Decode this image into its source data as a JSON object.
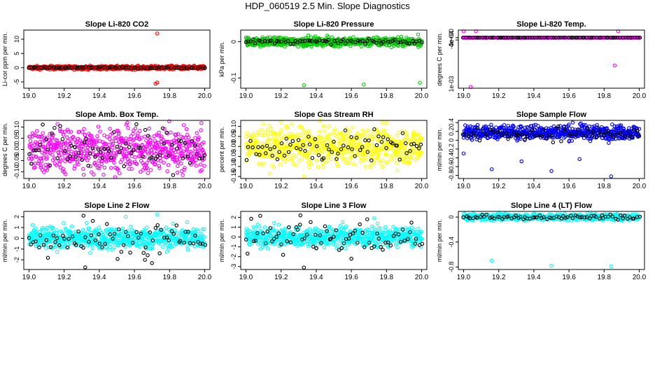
{
  "figure": {
    "title": "HDP_060519  2.5 Min. Slope Diagnostics"
  },
  "chart_data": [
    {
      "type": "scatter",
      "title": "Slope Li-820 CO2",
      "ylabel": "Li-cor ppm per min.",
      "color": "#ff0000",
      "xlim": [
        18.97,
        20.03
      ],
      "ylim": [
        -7.2,
        13.2
      ],
      "xticks": [
        19.0,
        19.2,
        19.4,
        19.6,
        19.8,
        20.0
      ],
      "yticks": [
        -5,
        0,
        5,
        10
      ],
      "series": [
        {
          "name": "all",
          "dense_center": 0,
          "dense_spread": 0.3,
          "outliers": [
            [
              19.73,
              12.0
            ],
            [
              19.73,
              -5.2
            ],
            [
              19.72,
              -5.6
            ],
            [
              19.81,
              0.8
            ]
          ]
        },
        {
          "name": "selected",
          "color": "#000000",
          "center": 0,
          "spread": 0.15
        }
      ]
    },
    {
      "type": "scatter",
      "title": "Slope Li-820 Pressure",
      "ylabel": "kPa per min.",
      "color": "#00cc00",
      "xlim": [
        18.97,
        20.03
      ],
      "ylim": [
        -0.128,
        0.032
      ],
      "xticks": [
        19.0,
        19.2,
        19.4,
        19.6,
        19.8,
        20.0
      ],
      "yticks": [
        -0.1,
        0.0
      ],
      "series": [
        {
          "name": "all",
          "dense_center": 0,
          "dense_spread": 0.006,
          "outliers": [
            [
              19.33,
              -0.12
            ],
            [
              19.67,
              -0.118
            ],
            [
              19.99,
              -0.113
            ],
            [
              19.98,
              0.02
            ]
          ]
        },
        {
          "name": "selected",
          "color": "#000000",
          "center": 0,
          "spread": 0.003
        }
      ]
    },
    {
      "type": "scatter",
      "title": "Slope Li-820 Temp.",
      "ylabel": "degrees C per min.",
      "color": "#ff00ff",
      "xlim": [
        18.97,
        20.03
      ],
      "ylim": [
        -0.0087,
        0.0013
      ],
      "xticks": [
        19.0,
        19.2,
        19.4,
        19.6,
        19.8,
        20.0
      ],
      "yticks": [
        -0.0004,
        0.0
      ],
      "ytick_labels": [
        "-4e-04",
        "0e+00"
      ],
      "ytick_extra": "1e-03",
      "series": [
        {
          "name": "all",
          "dense_center": 0,
          "dense_spread": 1e-05,
          "outliers": [
            [
              19.0,
              0.0011
            ],
            [
              19.07,
              0.0011
            ],
            [
              19.88,
              0.0011
            ],
            [
              19.04,
              -0.0085
            ],
            [
              19.86,
              -0.0048
            ]
          ]
        },
        {
          "name": "selected",
          "color": "#000000",
          "center": 0,
          "spread": 1e-05
        }
      ]
    },
    {
      "type": "scatter",
      "title": "Slope Amb. Box Temp.",
      "ylabel": "degrees C per min.",
      "color": "#ff00ff",
      "xlim": [
        18.97,
        20.03
      ],
      "ylim": [
        -0.13,
        0.13
      ],
      "xticks": [
        19.0,
        19.2,
        19.4,
        19.6,
        19.8,
        20.0
      ],
      "yticks": [
        -0.1,
        -0.05,
        0.0,
        0.05,
        0.1
      ],
      "ytick_labels": [
        "-0.10",
        "-0.05",
        "0.00",
        "0.05",
        "0.10"
      ],
      "series": [
        {
          "name": "all",
          "dense_center": 0,
          "dense_spread": 0.05,
          "outliers": []
        },
        {
          "name": "selected",
          "color": "#000000",
          "center": 0,
          "spread": 0.05
        }
      ]
    },
    {
      "type": "scatter",
      "title": "Slope Gas Stream RH",
      "ylabel": "percent per min.",
      "color": "#ffff00",
      "xlim": [
        18.97,
        20.03
      ],
      "ylim": [
        -0.16,
        0.13
      ],
      "xticks": [
        19.0,
        19.2,
        19.4,
        19.6,
        19.8,
        20.0
      ],
      "yticks": [
        -0.15,
        -0.1,
        -0.05,
        0.0,
        0.05,
        0.1
      ],
      "ytick_labels": [
        "-0.15",
        "-0.10",
        "-0.05",
        "0.00",
        "0.05",
        "0.10"
      ],
      "series": [
        {
          "name": "all",
          "dense_center": 0,
          "dense_spread": 0.045,
          "outliers": [
            [
              19.33,
              -0.15
            ],
            [
              19.2,
              0.12
            ]
          ]
        },
        {
          "name": "selected",
          "color": "#000000",
          "center": 0,
          "spread": 0.04
        }
      ]
    },
    {
      "type": "scatter",
      "title": "Slope Sample Flow",
      "ylabel": "ml/min per min.",
      "color": "#0000ff",
      "xlim": [
        18.97,
        20.03
      ],
      "ylim": [
        -0.87,
        0.45
      ],
      "xticks": [
        19.0,
        19.2,
        19.4,
        19.6,
        19.8,
        20.0
      ],
      "yticks": [
        -0.8,
        -0.6,
        -0.4,
        -0.2,
        0.0,
        0.2,
        0.4
      ],
      "series": [
        {
          "name": "all",
          "dense_center": 0.18,
          "dense_spread": 0.08,
          "outliers": [
            [
              19.16,
              -0.66
            ],
            [
              19.33,
              -0.48
            ],
            [
              19.5,
              -0.7
            ],
            [
              19.66,
              -0.43
            ],
            [
              19.84,
              -0.82
            ],
            [
              19.0,
              -0.3
            ]
          ]
        },
        {
          "name": "selected",
          "color": "#000000",
          "center": 0.15,
          "spread": 0.08
        }
      ]
    },
    {
      "type": "scatter",
      "title": "Slope Line 2 Flow",
      "ylabel": "ml/min per min.",
      "color": "#00ffff",
      "xlim": [
        18.97,
        20.03
      ],
      "ylim": [
        -2.9,
        2.5
      ],
      "xticks": [
        19.0,
        19.2,
        19.4,
        19.6,
        19.8,
        20.0
      ],
      "yticks": [
        -2,
        -1,
        0,
        1,
        2
      ],
      "series": [
        {
          "name": "all",
          "dense_center": 0,
          "dense_spread": 0.5,
          "outliers": [
            [
              19.55,
              2.0
            ],
            [
              19.73,
              2.2
            ],
            [
              19.9,
              1.5
            ]
          ]
        },
        {
          "name": "selected",
          "color": "#000000",
          "center": 0,
          "spread": 0.8,
          "outliers": [
            [
              19.32,
              -2.7
            ],
            [
              19.31,
              2.1
            ],
            [
              19.66,
              -2.0
            ],
            [
              19.7,
              -2.3
            ]
          ]
        }
      ]
    },
    {
      "type": "scatter",
      "title": "Slope Line 3 Flow",
      "ylabel": "ml/min per min.",
      "color": "#00ffff",
      "xlim": [
        18.97,
        20.03
      ],
      "ylim": [
        -3.3,
        2.6
      ],
      "xticks": [
        19.0,
        19.2,
        19.4,
        19.6,
        19.8,
        20.0
      ],
      "yticks": [
        -3,
        -2,
        -1,
        0,
        1,
        2
      ],
      "series": [
        {
          "name": "all",
          "dense_center": 0,
          "dense_spread": 0.5,
          "outliers": [
            [
              19.55,
              1.5
            ],
            [
              19.73,
              1.9
            ]
          ]
        },
        {
          "name": "selected",
          "color": "#000000",
          "center": 0,
          "spread": 0.8,
          "outliers": [
            [
              19.33,
              -3.1
            ],
            [
              19.31,
              2.2
            ],
            [
              19.6,
              -2.2
            ]
          ]
        }
      ]
    },
    {
      "type": "scatter",
      "title": "Slope Line 4 (LT) Flow",
      "ylabel": "ml/min per min.",
      "color": "#00ffff",
      "xlim": [
        18.97,
        20.03
      ],
      "ylim": [
        -0.84,
        0.09
      ],
      "xticks": [
        19.0,
        19.2,
        19.4,
        19.6,
        19.8,
        20.0
      ],
      "yticks": [
        -0.8,
        -0.4,
        0.0
      ],
      "series": [
        {
          "name": "all",
          "dense_center": 0.0,
          "dense_spread": 0.025,
          "outliers": [
            [
              19.16,
              -0.7
            ],
            [
              19.5,
              -0.78
            ],
            [
              19.84,
              -0.79
            ]
          ]
        },
        {
          "name": "selected",
          "color": "#000000",
          "center": 0.0,
          "spread": 0.02
        }
      ]
    }
  ]
}
